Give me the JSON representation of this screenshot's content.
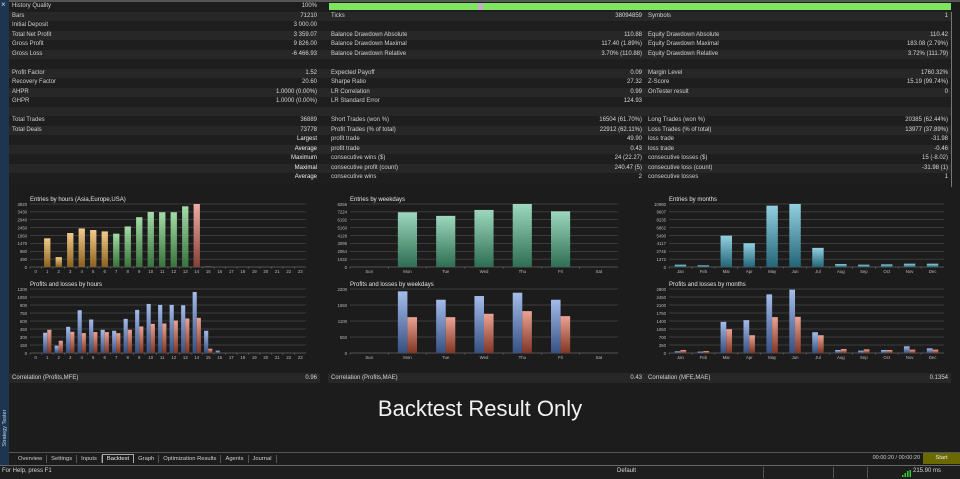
{
  "sidebar": {
    "close_icon": "close-icon",
    "title": "Strategy Tester"
  },
  "quality": {
    "label": "History Quality",
    "value": "100%",
    "progress": 1.0,
    "color": "#7ee462"
  },
  "rows": [
    [
      {
        "l": "History Quality",
        "v": "100%"
      },
      null,
      null
    ],
    [
      {
        "l": "Bars",
        "v": "71210"
      },
      {
        "l": "Ticks",
        "v": "38094859"
      },
      {
        "l": "Symbols",
        "v": "1"
      }
    ],
    [
      {
        "l": "Initial Deposit",
        "v": "3 000.00"
      },
      {
        "l": "",
        "v": ""
      },
      {
        "l": "",
        "v": ""
      }
    ],
    [
      {
        "l": "Total Net Profit",
        "v": "3 359.07"
      },
      {
        "l": "Balance Drawdown Absolute",
        "v": "110.88"
      },
      {
        "l": "Equity Drawdown Absolute",
        "v": "110.42"
      }
    ],
    [
      {
        "l": "Gross Profit",
        "v": "9 826.00"
      },
      {
        "l": "Balance Drawdown Maximal",
        "v": "117.40 (1.89%)"
      },
      {
        "l": "Equity Drawdown Maximal",
        "v": "183.08 (2.79%)"
      }
    ],
    [
      {
        "l": "Gross Loss",
        "v": "-6 466.93"
      },
      {
        "l": "Balance Drawdown Relative",
        "v": "3.70% (110.88)"
      },
      {
        "l": "Equity Drawdown Relative",
        "v": "3.72% (111.79)"
      }
    ],
    [
      {
        "l": "",
        "v": ""
      },
      {
        "l": "",
        "v": ""
      },
      {
        "l": "",
        "v": ""
      }
    ],
    [
      {
        "l": "Profit Factor",
        "v": "1.52"
      },
      {
        "l": "Expected Payoff",
        "v": "0.09"
      },
      {
        "l": "Margin Level",
        "v": "1760.32%"
      }
    ],
    [
      {
        "l": "Recovery Factor",
        "v": "20.60"
      },
      {
        "l": "Sharpe Ratio",
        "v": "27.32"
      },
      {
        "l": "Z-Score",
        "v": "15.19 (99.74%)"
      }
    ],
    [
      {
        "l": "AHPR",
        "v": "1.0000 (0.00%)"
      },
      {
        "l": "LR Correlation",
        "v": "0.99"
      },
      {
        "l": "OnTester result",
        "v": "0"
      }
    ],
    [
      {
        "l": "GHPR",
        "v": "1.0000 (0.00%)"
      },
      {
        "l": "LR Standard Error",
        "v": "124.93"
      },
      {
        "l": "",
        "v": ""
      }
    ],
    [
      {
        "l": "",
        "v": ""
      },
      {
        "l": "",
        "v": ""
      },
      {
        "l": "",
        "v": ""
      }
    ],
    [
      {
        "l": "Total Trades",
        "v": "36889"
      },
      {
        "l": "Short Trades (won %)",
        "v": "16504 (61.70%)"
      },
      {
        "l": "Long Trades (won %)",
        "v": "20385 (62.44%)"
      }
    ],
    [
      {
        "l": "Total Deals",
        "v": "73778"
      },
      {
        "l": "Profit Trades (% of total)",
        "v": "22912 (62.11%)"
      },
      {
        "l": "Loss Trades (% of total)",
        "v": "13977 (37.89%)"
      }
    ],
    [
      {
        "l": "",
        "v": "Largest"
      },
      {
        "l": "profit trade",
        "v": "49.90"
      },
      {
        "l": "loss trade",
        "v": "-31.98"
      }
    ],
    [
      {
        "l": "",
        "v": "Average"
      },
      {
        "l": "profit trade",
        "v": "0.43"
      },
      {
        "l": "loss trade",
        "v": "-0.46"
      }
    ],
    [
      {
        "l": "",
        "v": "Maximum"
      },
      {
        "l": "consecutive wins ($)",
        "v": "24 (22.27)"
      },
      {
        "l": "consecutive losses ($)",
        "v": "15 (-8.02)"
      }
    ],
    [
      {
        "l": "",
        "v": "Maximal"
      },
      {
        "l": "consecutive profit (count)",
        "v": "240.47 (5)"
      },
      {
        "l": "consecutive loss (count)",
        "v": "-31.98 (1)"
      }
    ],
    [
      {
        "l": "",
        "v": "Average"
      },
      {
        "l": "consecutive wins",
        "v": "2"
      },
      {
        "l": "consecutive losses",
        "v": "1"
      }
    ]
  ],
  "correlations": [
    {
      "label": "Correlation (Profits,MFE)",
      "value": "0.96"
    },
    {
      "label": "Correlation (Profits,MAE)",
      "value": "0.43"
    },
    {
      "label": "Correlation (MFE,MAE)",
      "value": "0.1354"
    }
  ],
  "banner": "Backtest Result Only",
  "tabs": [
    "Overview",
    "Settings",
    "Inputs",
    "Backtest",
    "Graph",
    "Optimization Results",
    "Agents",
    "Journal"
  ],
  "active_tab": "Backtest",
  "timer": "00:00:20 / 00:00:20",
  "start_label": "Start",
  "status": {
    "help": "For Help, press F1",
    "profile": "Default",
    "ping": "215.90 ms",
    "signal_icon": "signal-bars-icon"
  },
  "chart_data": [
    {
      "type": "bar",
      "title": "Entries by hours (Asia,Europe,USA)",
      "categories": [
        "0",
        "1",
        "2",
        "3",
        "4",
        "5",
        "6",
        "7",
        "8",
        "9",
        "10",
        "11",
        "12",
        "13",
        "14",
        "15",
        "16",
        "17",
        "18",
        "19",
        "20",
        "21",
        "22",
        "23"
      ],
      "values": [
        0,
        1785,
        615,
        2114,
        2400,
        2300,
        2215,
        2073,
        2524,
        3100,
        3427,
        3407,
        3407,
        3776,
        3920,
        30,
        0,
        0,
        0,
        0,
        0,
        0,
        0,
        0
      ],
      "colors": [
        "#e8a030",
        "#e8a030",
        "#e8a030",
        "#e8a030",
        "#e8a030",
        "#e8a030",
        "#e8a030",
        "#5cc060",
        "#5cc060",
        "#5cc060",
        "#5cc060",
        "#5cc060",
        "#5cc060",
        "#5cc060",
        "#e06a58",
        "#e06a58",
        "#e06a58",
        "#e06a58",
        "#e06a58",
        "#e06a58",
        "#e06a58",
        "#e06a58",
        "#e06a58",
        "#e06a58"
      ],
      "ylim": [
        0,
        3920
      ],
      "yticks": [
        0,
        490,
        980,
        1470,
        1960,
        2450,
        2940,
        3430,
        3920
      ],
      "grid": true
    },
    {
      "type": "bar",
      "title": "Profits and losses by hours",
      "categories": [
        "0",
        "1",
        "2",
        "3",
        "4",
        "5",
        "6",
        "7",
        "8",
        "9",
        "10",
        "11",
        "12",
        "13",
        "14",
        "15",
        "16",
        "17",
        "18",
        "19",
        "20",
        "21",
        "22",
        "23"
      ],
      "series": [
        {
          "values": [
            0,
            380,
            137,
            491,
            802,
            628,
            435,
            417,
            640,
            808,
            920,
            902,
            902,
            895,
            1144,
            417,
            44,
            0,
            0,
            0,
            0,
            0,
            0,
            0
          ],
          "color": "#5a86d8"
        },
        {
          "values": [
            0,
            435,
            230,
            398,
            373,
            392,
            392,
            373,
            435,
            497,
            547,
            553,
            609,
            647,
            659,
            81,
            0,
            0,
            0,
            0,
            0,
            0,
            0,
            0
          ],
          "color": "#d8583c"
        }
      ],
      "ylim": [
        0,
        1200
      ],
      "yticks": [
        0,
        150,
        300,
        450,
        600,
        750,
        900,
        1050,
        1200
      ],
      "grid": true
    },
    {
      "type": "bar",
      "title": "Entries by weekdays",
      "categories": [
        "Sun",
        "Mon",
        "Tue",
        "Wed",
        "Thu",
        "Fri",
        "Sat"
      ],
      "values": [
        0,
        7175,
        6700,
        7478,
        8256,
        7305,
        0
      ],
      "colors": [
        "#4cb888",
        "#4cb888",
        "#4cb888",
        "#4cb888",
        "#4cb888",
        "#4cb888",
        "#4cb888"
      ],
      "ylim": [
        0,
        8256
      ],
      "yticks": [
        0,
        1032,
        2064,
        3096,
        4128,
        5160,
        6192,
        7224,
        8256
      ],
      "grid": true
    },
    {
      "type": "bar",
      "title": "Profits and losses by weekdays",
      "categories": [
        "Sun",
        "Mon",
        "Tue",
        "Wed",
        "Thu",
        "Fri",
        "Sat"
      ],
      "series": [
        {
          "values": [
            0,
            2119,
            1831,
            1958,
            2073,
            1831,
            0
          ],
          "color": "#5a86d8"
        },
        {
          "values": [
            0,
            1232,
            1232,
            1348,
            1440,
            1267,
            0
          ],
          "color": "#d8583c"
        }
      ],
      "ylim": [
        0,
        2200
      ],
      "yticks": [
        0,
        550,
        1100,
        1650,
        2200
      ],
      "grid": true
    },
    {
      "type": "bar",
      "title": "Entries by months",
      "categories": [
        "Jan",
        "Feb",
        "Mar",
        "Apr",
        "May",
        "Jun",
        "Jul",
        "Aug",
        "Sep",
        "Oct",
        "Nov",
        "Dec"
      ],
      "values": [
        402,
        287,
        5461,
        4139,
        10692,
        10980,
        3334,
        517,
        402,
        460,
        575,
        575
      ],
      "colors": [
        "#3aa8c8",
        "#3aa8c8",
        "#3aa8c8",
        "#3aa8c8",
        "#3aa8c8",
        "#3aa8c8",
        "#3aa8c8",
        "#3aa8c8",
        "#3aa8c8",
        "#3aa8c8",
        "#3aa8c8",
        "#3aa8c8"
      ],
      "ylim": [
        0,
        10980
      ],
      "yticks": [
        0,
        1372,
        2745,
        4117,
        5490,
        6862,
        8235,
        9607,
        10980
      ],
      "grid": true
    },
    {
      "type": "bar",
      "title": "Profits and losses by months",
      "categories": [
        "Jan",
        "Feb",
        "Mar",
        "Apr",
        "May",
        "Jun",
        "Jul",
        "Aug",
        "Sep",
        "Oct",
        "Nov",
        "Dec"
      ],
      "series": [
        {
          "values": [
            73,
            59,
            1363,
            1437,
            2565,
            2771,
            909,
            132,
            103,
            132,
            293,
            205
          ],
          "color": "#5a86d8"
        },
        {
          "values": [
            132,
            88,
            1041,
            777,
            1569,
            1583,
            777,
            176,
            161,
            132,
            147,
            147
          ],
          "color": "#d8583c"
        }
      ],
      "ylim": [
        0,
        2800
      ],
      "yticks": [
        0,
        350,
        700,
        1050,
        1400,
        1750,
        2100,
        2450,
        2800
      ],
      "grid": true
    }
  ]
}
